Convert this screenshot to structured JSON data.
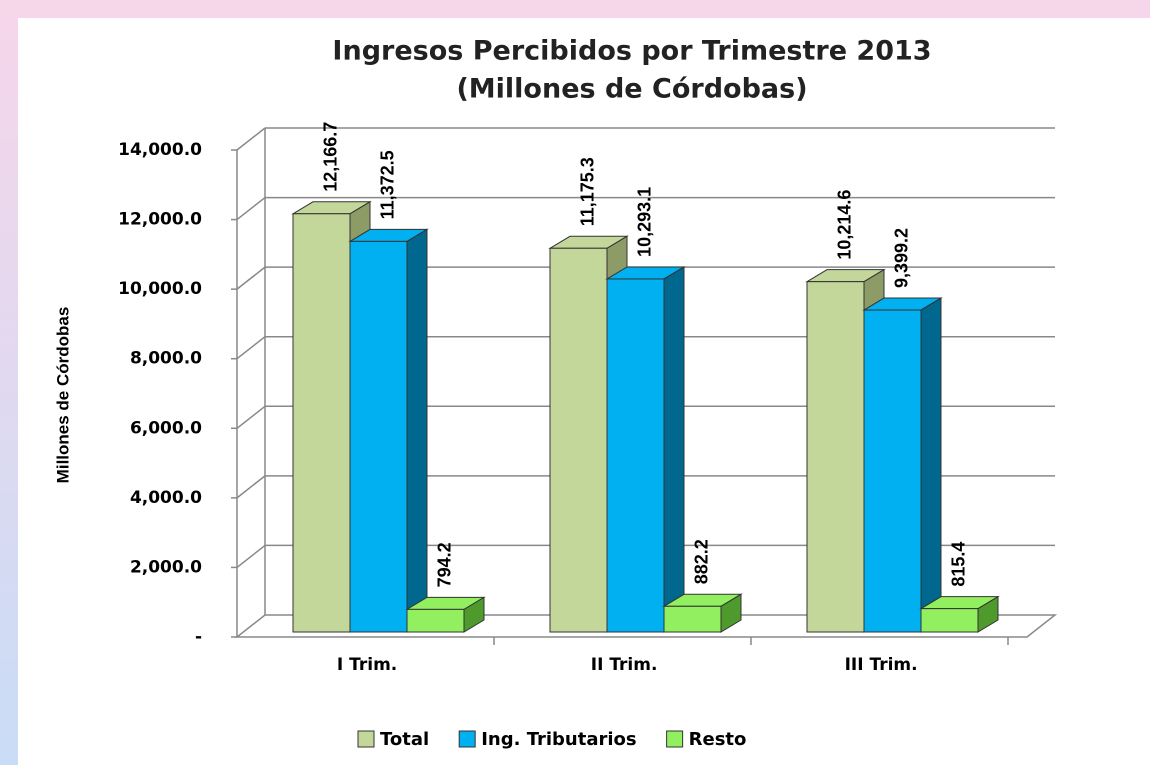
{
  "chart_data": {
    "type": "bar3d",
    "title": "Ingresos Percibidos por Trimestre 2013",
    "subtitle": "(Millones de Córdobas)",
    "y_label": "Millones de Córdobas",
    "categories": [
      "I Trim.",
      "II Trim.",
      "III Trim."
    ],
    "series": [
      {
        "name": "Total",
        "color": "#c4d79b",
        "side_color": "#8d9b66",
        "values": [
          12166.7,
          11175.3,
          10214.6
        ],
        "value_labels": [
          "12,166.7",
          "11,175.3",
          "10,214.6"
        ]
      },
      {
        "name": "Ing. Tributarios",
        "color": "#00b0f0",
        "side_color": "#00678f",
        "values": [
          11372.5,
          10293.1,
          9399.2
        ],
        "value_labels": [
          "11,372.5",
          "10,293.1",
          "9,399.2"
        ]
      },
      {
        "name": "Resto",
        "color": "#92f060",
        "side_color": "#4f9a2c",
        "values": [
          794.2,
          882.2,
          815.4
        ],
        "value_labels": [
          "794.2",
          "882.2",
          "815.4"
        ]
      }
    ],
    "ylim": [
      0,
      14000
    ],
    "yticks": [
      {
        "value": 0,
        "label": "-"
      },
      {
        "value": 2000,
        "label": "2,000.0"
      },
      {
        "value": 4000,
        "label": "4,000.0"
      },
      {
        "value": 6000,
        "label": "6,000.0"
      },
      {
        "value": 8000,
        "label": "8,000.0"
      },
      {
        "value": 10000,
        "label": "10,000.0"
      },
      {
        "value": 12000,
        "label": "12,000.0"
      },
      {
        "value": 14000,
        "label": "14,000.0"
      }
    ],
    "grid": true,
    "legend": "bottom"
  }
}
